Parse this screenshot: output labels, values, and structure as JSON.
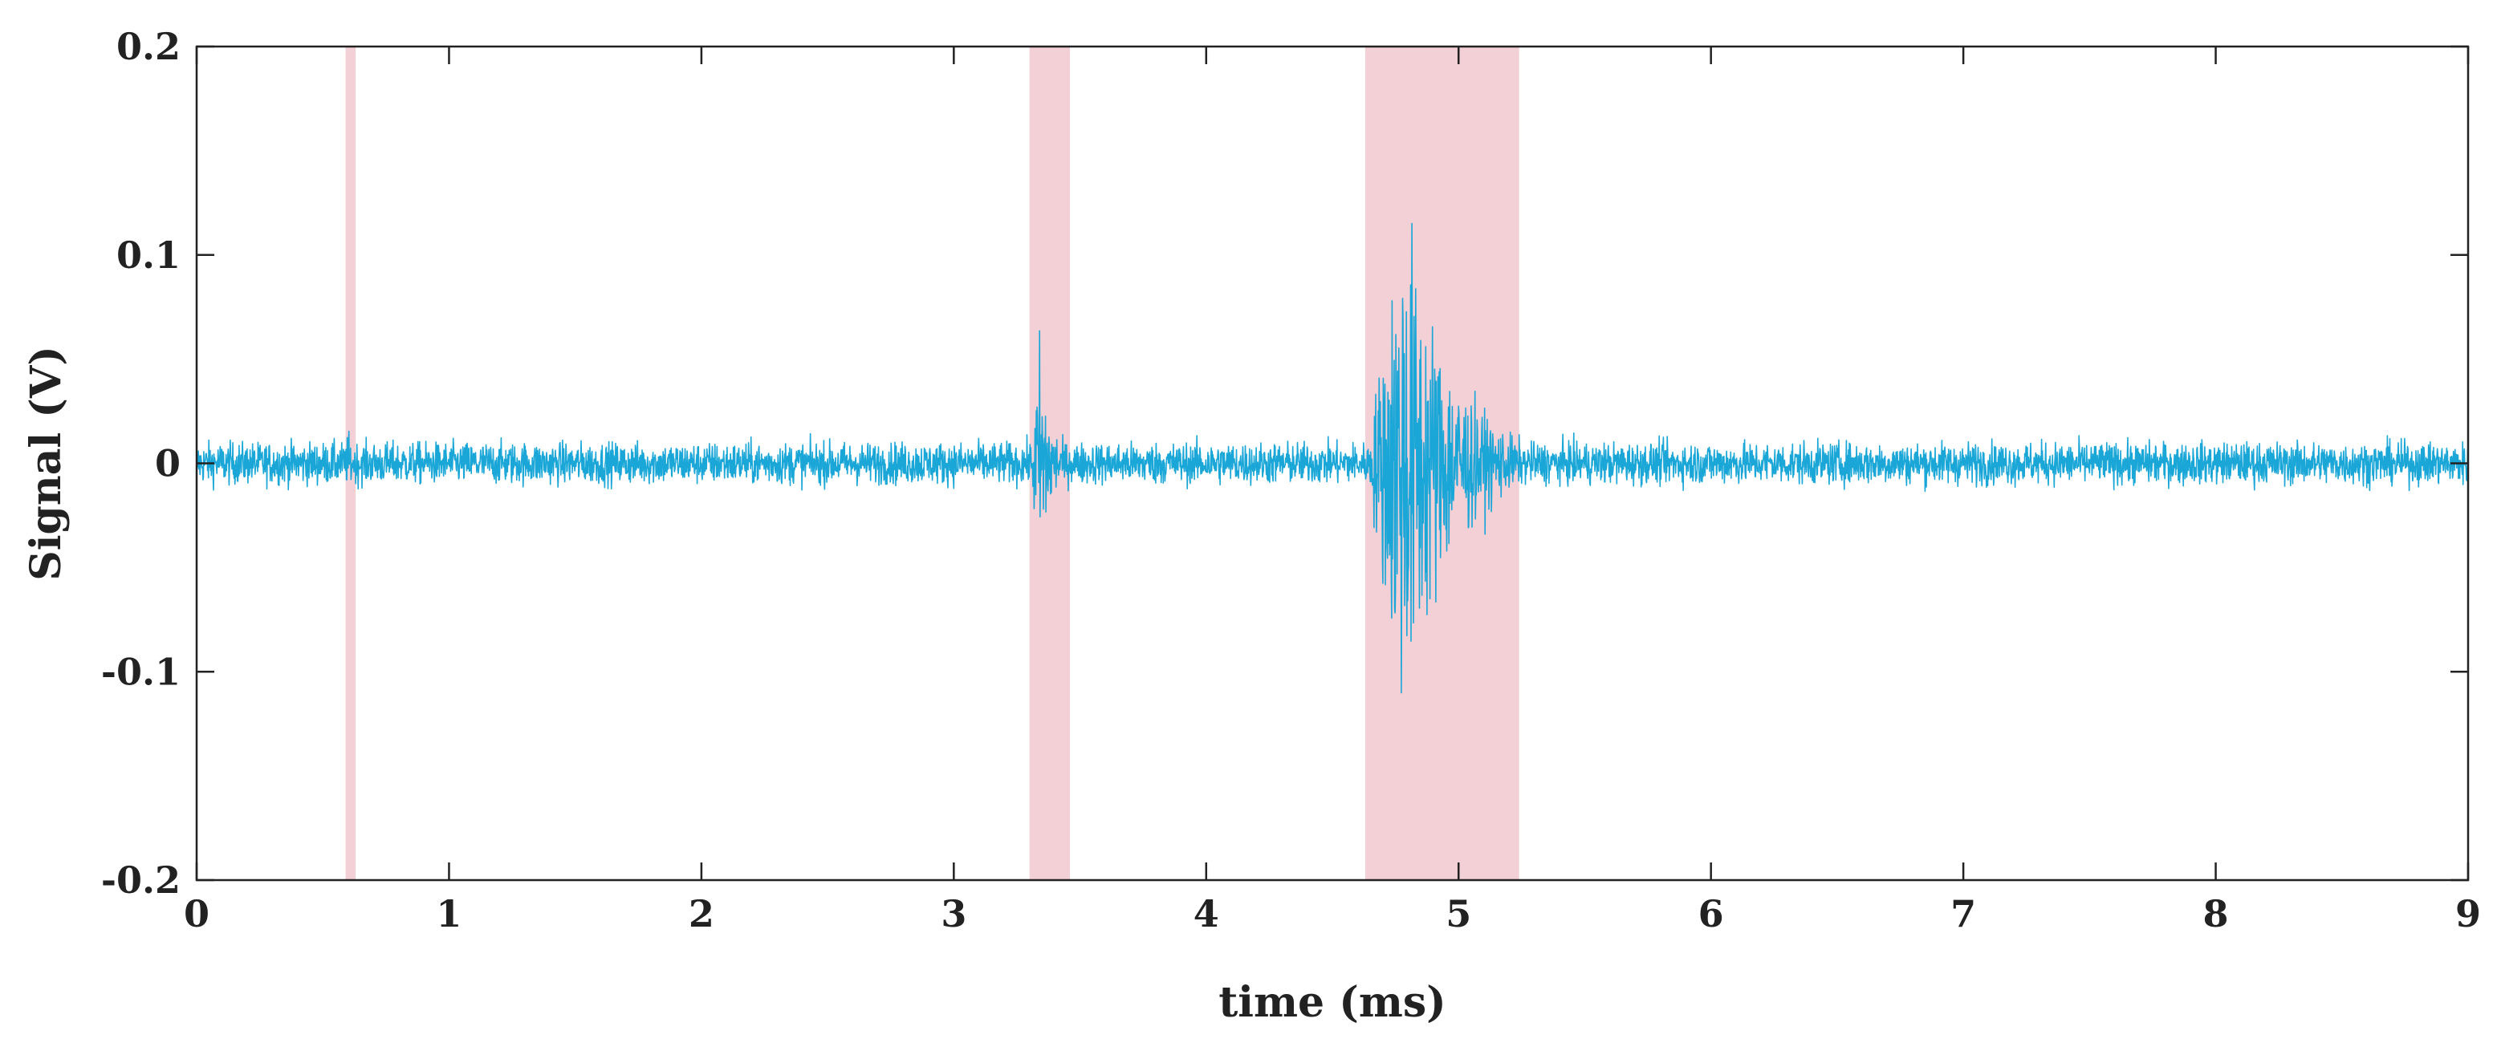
{
  "chart_data": {
    "type": "line",
    "title": "",
    "xlabel": "time (ms)",
    "ylabel": "Signal (V)",
    "xlim": [
      0,
      9
    ],
    "ylim": [
      -0.2,
      0.2
    ],
    "x_ticks": [
      0,
      1,
      2,
      3,
      4,
      5,
      6,
      7,
      8,
      9
    ],
    "x_tick_labels": [
      "0",
      "1",
      "2",
      "3",
      "4",
      "5",
      "6",
      "7",
      "8",
      "9"
    ],
    "y_ticks": [
      0.2,
      0.1,
      0,
      -0.1,
      -0.2
    ],
    "y_tick_labels": [
      "0.2",
      "0.1",
      "0",
      "-0.1",
      "-0.2"
    ],
    "grid": false,
    "legend": false,
    "colors": {
      "signal": "#1aa7d8",
      "highlight": "#f2d0d6",
      "axis": "#222222"
    },
    "highlight_regions": [
      {
        "x_start": 0.59,
        "x_end": 0.63
      },
      {
        "x_start": 3.3,
        "x_end": 3.46
      },
      {
        "x_start": 4.63,
        "x_end": 5.24
      }
    ],
    "series": [
      {
        "x_range": [
          0,
          9
        ],
        "baseline_noise_amplitude": 0.007,
        "bursts": [
          {
            "start": 0.59,
            "end": 0.63,
            "peak_amplitude": 0.025
          },
          {
            "start": 3.3,
            "end": 3.46,
            "peak_amplitude": 0.075
          },
          {
            "start": 4.63,
            "end": 5.24,
            "peak_amplitude": 0.16
          }
        ]
      }
    ]
  }
}
